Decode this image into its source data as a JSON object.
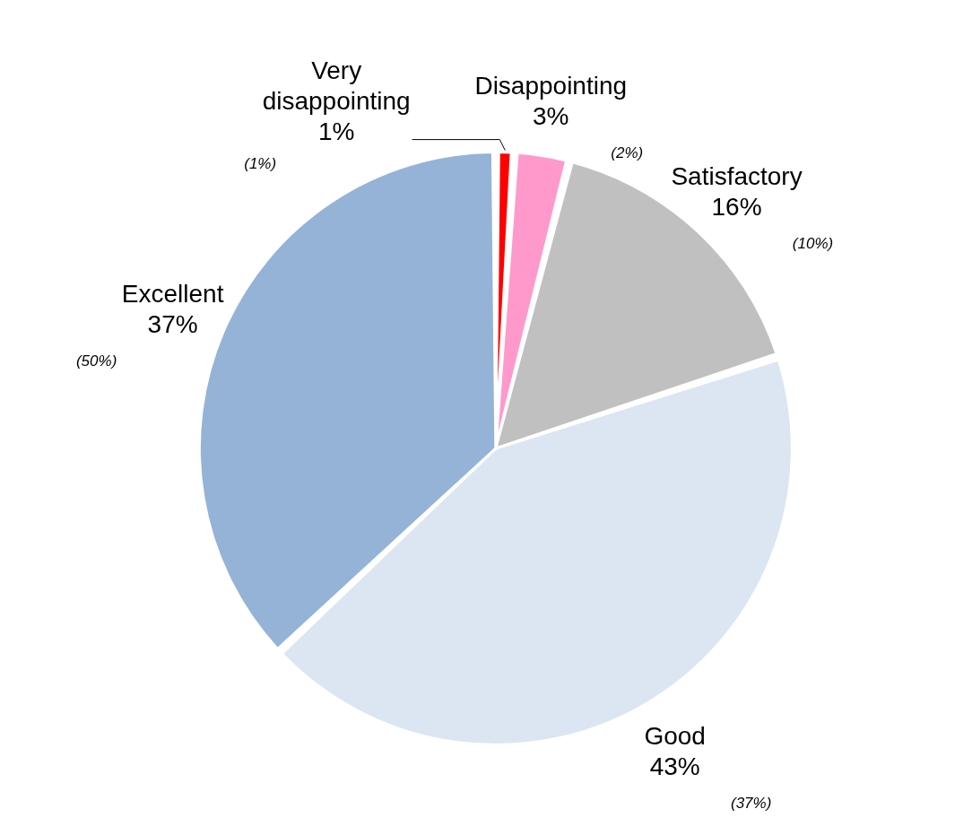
{
  "chart_data": {
    "type": "pie",
    "categories": [
      "Very disappointing",
      "Disappointing",
      "Satisfactory",
      "Good",
      "Excellent"
    ],
    "values": [
      1,
      3,
      16,
      43,
      37
    ],
    "colors": [
      "#ff0000",
      "#ff99cc",
      "#c0c0c0",
      "#dce6f2",
      "#95b3d7"
    ],
    "value_labels": [
      "1%",
      "3%",
      "16%",
      "43%",
      "37%"
    ],
    "annotations": [
      "(1%)",
      "(2%)",
      "(10%)",
      "(37%)",
      "(50%)"
    ],
    "legend": false
  }
}
